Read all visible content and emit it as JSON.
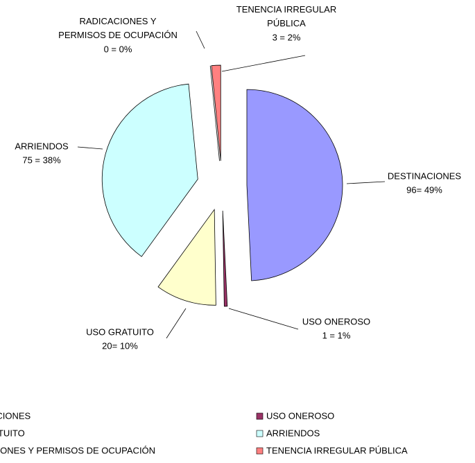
{
  "chart_data": {
    "type": "pie",
    "categories": [
      "DESTINACIONES",
      "USO ONEROSO",
      "USO GRATUITO",
      "ARRIENDOS",
      "RADICACIONES Y PERMISOS DE OCUPACIÓN",
      "TENENCIA IRREGULAR PÚBLICA"
    ],
    "values": [
      96,
      1,
      20,
      75,
      0,
      3
    ],
    "value_labels": [
      "96= 49%",
      "1 = 1%",
      "20= 10%",
      "75 = 38%",
      "0 = 0%",
      "3 = 2%"
    ],
    "colors": [
      "#9999ff",
      "#993366",
      "#ffffcc",
      "#ccffff",
      "#660066",
      "#ff8080"
    ],
    "legend": "bottom"
  }
}
